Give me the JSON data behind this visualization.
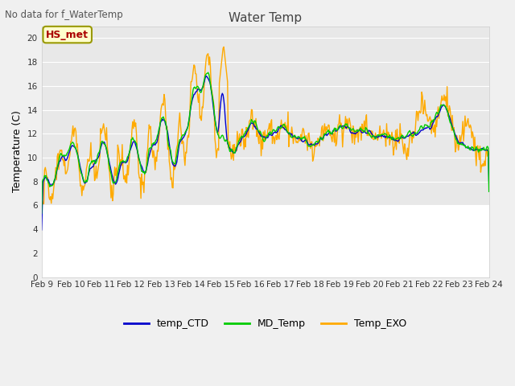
{
  "title": "Water Temp",
  "subtitle": "No data for f_WaterTemp",
  "ylabel": "Temperature (C)",
  "ylim": [
    0,
    21
  ],
  "yticks": [
    0,
    2,
    4,
    6,
    8,
    10,
    12,
    14,
    16,
    18,
    20
  ],
  "xtick_labels": [
    "Feb 9",
    "Feb 10",
    "Feb 11",
    "Feb 12",
    "Feb 13",
    "Feb 14",
    "Feb 15",
    "Feb 16",
    "Feb 17",
    "Feb 18",
    "Feb 19",
    "Feb 20",
    "Feb 21",
    "Feb 22",
    "Feb 23",
    "Feb 24"
  ],
  "annotation_text": "HS_met",
  "annotation_color": "#aa0000",
  "annotation_bg": "#ffffcc",
  "annotation_edge": "#999900",
  "bg_color": "#f0f0f0",
  "plot_upper_bg": "#e8e8e8",
  "plot_lower_bg": "#ffffff",
  "grid_color": "#d8d8d8",
  "line_ctd_color": "#0000cc",
  "line_md_color": "#00cc00",
  "line_exo_color": "#ffaa00",
  "legend_labels": [
    "temp_CTD",
    "MD_Temp",
    "Temp_EXO"
  ],
  "figwidth": 6.4,
  "figheight": 4.8,
  "dpi": 100
}
